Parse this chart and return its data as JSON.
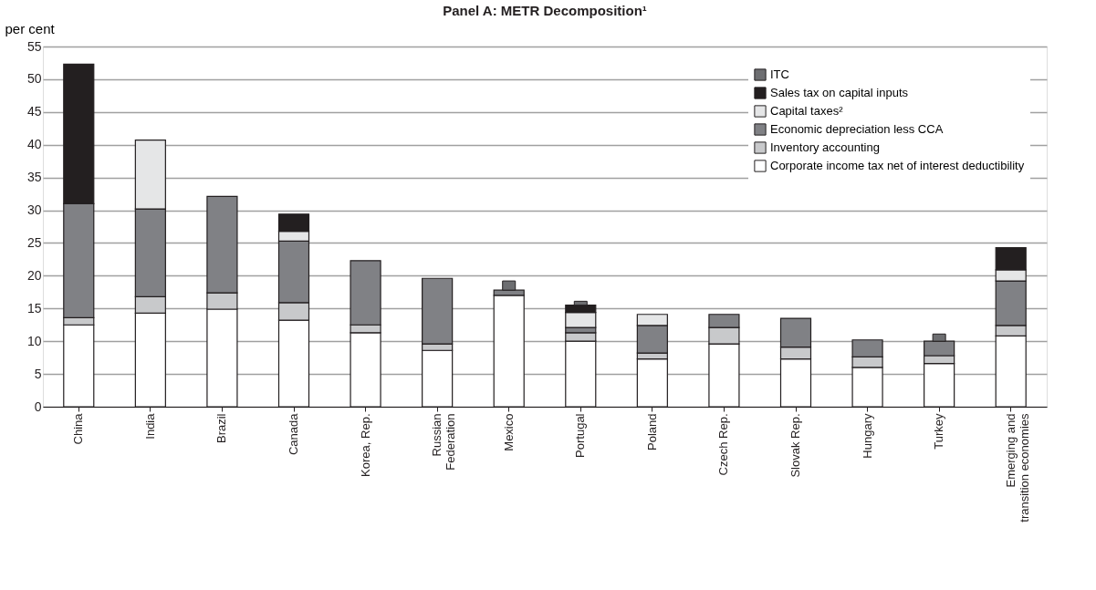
{
  "chart_data": {
    "type": "bar",
    "stacked": true,
    "title": "Panel A: METR Decomposition¹",
    "ylabel": "per cent",
    "categories": [
      "China",
      "India",
      "Brazil",
      "Canada",
      "Korea, Rep.",
      "Russian Federation",
      "Mexico",
      "Portugal",
      "Poland",
      "Czech Rep.",
      "Slovak Rep.",
      "Hungary",
      "Turkey",
      "Emerging and transition economies"
    ],
    "series": [
      {
        "name": "Corporate income tax net of interest deductibility",
        "color": "#ffffff",
        "values": [
          12.5,
          14.3,
          14.9,
          13.2,
          11.3,
          8.6,
          17.0,
          10.0,
          7.3,
          9.6,
          7.3,
          6.0,
          6.6,
          10.8
        ]
      },
      {
        "name": "Inventory accounting",
        "color": "#c8c9cb",
        "values": [
          1.1,
          2.5,
          2.5,
          2.7,
          1.2,
          1.0,
          null,
          1.3,
          0.9,
          2.5,
          1.8,
          1.6,
          1.2,
          1.6
        ]
      },
      {
        "name": "Economic depreciation less CCA",
        "color": "#808185",
        "values": [
          17.4,
          13.4,
          14.7,
          9.4,
          9.8,
          10.0,
          0.8,
          0.8,
          4.2,
          2.0,
          4.4,
          2.6,
          2.2,
          6.8
        ]
      },
      {
        "name": "Capital taxes²",
        "color": "#e5e6e7",
        "values": [
          null,
          10.5,
          null,
          1.5,
          null,
          null,
          null,
          2.3,
          1.7,
          null,
          null,
          null,
          null,
          1.7
        ]
      },
      {
        "name": "Sales tax on capital inputs",
        "color": "#231f20",
        "values": [
          21.3,
          null,
          null,
          2.6,
          null,
          null,
          null,
          1.1,
          null,
          null,
          null,
          null,
          null,
          3.4
        ]
      },
      {
        "name": "ITC",
        "color": "#6d6e71",
        "values": [
          null,
          null,
          null,
          null,
          null,
          null,
          1.4,
          0.6,
          null,
          null,
          null,
          null,
          1.1,
          null
        ]
      }
    ],
    "ylim": [
      0,
      55
    ],
    "yticks": [
      0,
      5,
      10,
      15,
      20,
      25,
      30,
      35,
      40,
      45,
      50,
      55
    ],
    "grid": "y",
    "legend": "top right"
  }
}
